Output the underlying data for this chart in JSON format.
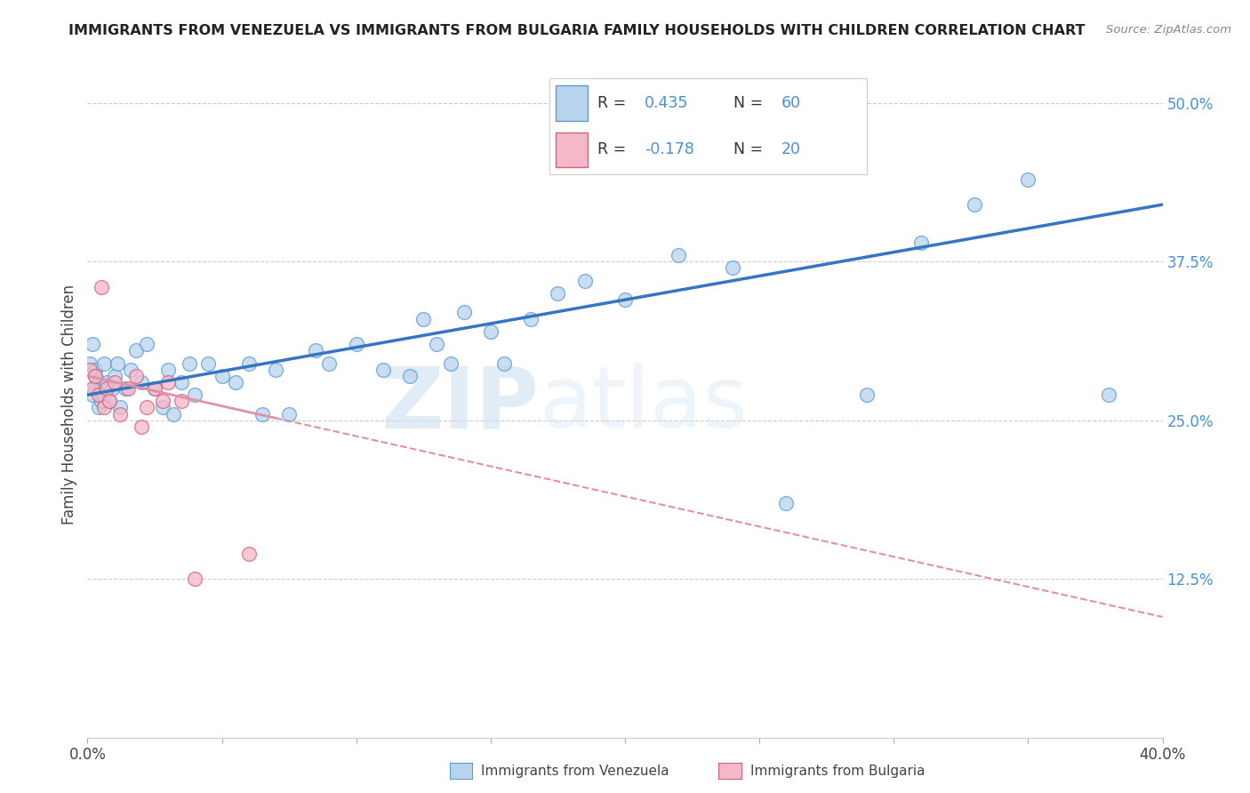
{
  "title": "IMMIGRANTS FROM VENEZUELA VS IMMIGRANTS FROM BULGARIA FAMILY HOUSEHOLDS WITH CHILDREN CORRELATION CHART",
  "source": "Source: ZipAtlas.com",
  "ylabel": "Family Households with Children",
  "xlabel_legend1": "Immigrants from Venezuela",
  "xlabel_legend2": "Immigrants from Bulgaria",
  "R1": 0.435,
  "N1": 60,
  "R2": -0.178,
  "N2": 20,
  "color_venezuela_fill": "#b8d4ed",
  "color_venezuela_edge": "#5b9bd5",
  "color_bulgaria_fill": "#f4b8c8",
  "color_bulgaria_edge": "#d4607a",
  "color_trend_venezuela": "#3575c2",
  "color_trend_bulgaria": "#e090a8",
  "xmin": 0.0,
  "xmax": 0.4,
  "ymin": 0.0,
  "ymax": 0.525,
  "yticks": [
    0.0,
    0.125,
    0.25,
    0.375,
    0.5
  ],
  "ytick_labels": [
    "",
    "12.5%",
    "25.0%",
    "37.5%",
    "50.0%"
  ],
  "xtick_labels_show": [
    "0.0%",
    "40.0%"
  ],
  "watermark_zip": "ZIP",
  "watermark_atlas": "atlas",
  "venezuela_x": [
    0.001,
    0.002,
    0.002,
    0.003,
    0.003,
    0.003,
    0.004,
    0.004,
    0.005,
    0.005,
    0.006,
    0.006,
    0.007,
    0.008,
    0.009,
    0.01,
    0.011,
    0.012,
    0.014,
    0.016,
    0.018,
    0.02,
    0.022,
    0.025,
    0.028,
    0.03,
    0.032,
    0.035,
    0.038,
    0.04,
    0.045,
    0.05,
    0.055,
    0.06,
    0.065,
    0.07,
    0.075,
    0.085,
    0.09,
    0.1,
    0.11,
    0.12,
    0.125,
    0.13,
    0.135,
    0.14,
    0.15,
    0.155,
    0.165,
    0.175,
    0.185,
    0.2,
    0.22,
    0.24,
    0.26,
    0.29,
    0.31,
    0.33,
    0.35,
    0.38
  ],
  "venezuela_y": [
    0.295,
    0.31,
    0.27,
    0.29,
    0.285,
    0.275,
    0.28,
    0.26,
    0.265,
    0.275,
    0.295,
    0.27,
    0.28,
    0.265,
    0.275,
    0.285,
    0.295,
    0.26,
    0.275,
    0.29,
    0.305,
    0.28,
    0.31,
    0.275,
    0.26,
    0.29,
    0.255,
    0.28,
    0.295,
    0.27,
    0.295,
    0.285,
    0.28,
    0.295,
    0.255,
    0.29,
    0.255,
    0.305,
    0.295,
    0.31,
    0.29,
    0.285,
    0.33,
    0.31,
    0.295,
    0.335,
    0.32,
    0.295,
    0.33,
    0.35,
    0.36,
    0.345,
    0.38,
    0.37,
    0.185,
    0.27,
    0.39,
    0.42,
    0.44,
    0.27
  ],
  "bulgaria_x": [
    0.001,
    0.002,
    0.003,
    0.004,
    0.005,
    0.006,
    0.007,
    0.008,
    0.01,
    0.012,
    0.015,
    0.018,
    0.02,
    0.022,
    0.025,
    0.028,
    0.03,
    0.035,
    0.04,
    0.06
  ],
  "bulgaria_y": [
    0.29,
    0.275,
    0.285,
    0.27,
    0.355,
    0.26,
    0.275,
    0.265,
    0.28,
    0.255,
    0.275,
    0.285,
    0.245,
    0.26,
    0.275,
    0.265,
    0.28,
    0.265,
    0.125,
    0.145
  ],
  "trend_v_x0": 0.0,
  "trend_v_x1": 0.4,
  "trend_v_y0": 0.27,
  "trend_v_y1": 0.42,
  "trend_b_x0": 0.0,
  "trend_b_x1": 0.4,
  "trend_b_y0": 0.285,
  "trend_b_y1": 0.095
}
